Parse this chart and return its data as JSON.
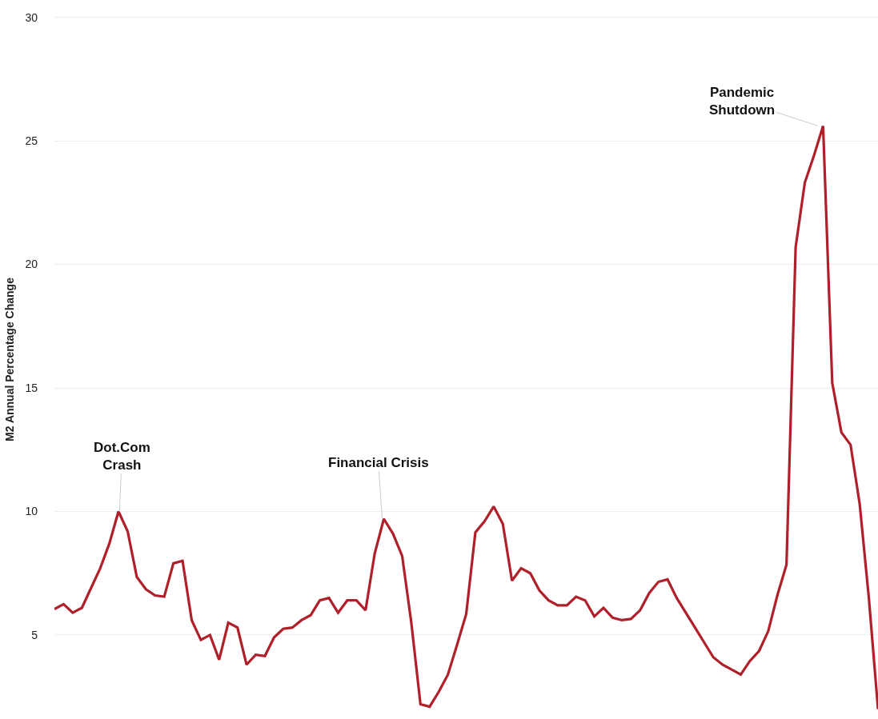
{
  "chart_data": {
    "type": "line",
    "ylabel": "M2 Annual Percentage Change",
    "categories": [
      null,
      null,
      null,
      null,
      null,
      null,
      null,
      null,
      null,
      null,
      null,
      null,
      null,
      null,
      null,
      null,
      null,
      null,
      null,
      null,
      null,
      null,
      null,
      null,
      null,
      null,
      null,
      null,
      null,
      null,
      null,
      null,
      null,
      null,
      null,
      null,
      null,
      null,
      null,
      null,
      null,
      null,
      null,
      null,
      null,
      null,
      null,
      null,
      null,
      null,
      null,
      null,
      null,
      null,
      null,
      null,
      null,
      null,
      null,
      null,
      null,
      null,
      null,
      null,
      null,
      null,
      null,
      null,
      null,
      null,
      null,
      null,
      null,
      null,
      null,
      null,
      null,
      null,
      null,
      null,
      null,
      null,
      null,
      null,
      null,
      null,
      null,
      null,
      null,
      null,
      null
    ],
    "series": [
      {
        "color": "#b0202a",
        "values": [
          6.05,
          6.25,
          5.9,
          6.1,
          6.9,
          7.7,
          8.7,
          10.0,
          9.2,
          7.35,
          6.85,
          6.6,
          6.55,
          7.9,
          8.0,
          5.6,
          4.8,
          5.0,
          4.0,
          5.5,
          5.3,
          3.8,
          4.2,
          4.15,
          4.9,
          5.25,
          5.3,
          5.6,
          5.8,
          6.4,
          6.5,
          5.9,
          6.4,
          6.4,
          6.0,
          8.3,
          9.7,
          9.1,
          8.2,
          5.5,
          2.2,
          2.1,
          2.7,
          3.4,
          4.6,
          5.85,
          9.15,
          9.6,
          10.2,
          9.5,
          7.2,
          7.7,
          7.5,
          6.8,
          6.4,
          6.2,
          6.2,
          6.55,
          6.4,
          5.75,
          6.1,
          5.7,
          5.6,
          5.65,
          6.0,
          6.7,
          7.15,
          7.25,
          6.5,
          5.9,
          5.3,
          4.7,
          4.1,
          3.8,
          3.6,
          3.4,
          3.95,
          4.35,
          5.15,
          6.6,
          7.85,
          20.7,
          23.3,
          24.4,
          25.6,
          15.2,
          13.2,
          12.7,
          10.3,
          6.5,
          2.0
        ]
      }
    ],
    "ylim": [
      1.6,
      30.7
    ],
    "yticks": [
      5,
      10,
      15,
      20,
      25,
      30
    ],
    "grid": "y",
    "legend": false,
    "tick_labels": "y",
    "marker": "none",
    "line_style": "solid",
    "annotations": [
      "Dot.Com\nCrash",
      "Financial Crisis",
      "Pandemic\nShutdown"
    ]
  }
}
